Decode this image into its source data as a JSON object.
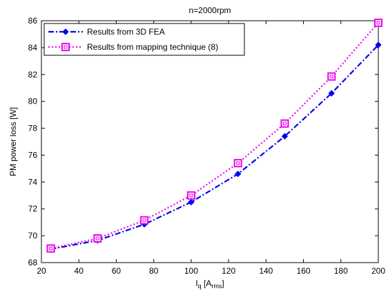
{
  "chart_data": {
    "type": "line",
    "title": "n=2000rpm",
    "xlabel": "I",
    "xlabel_sub": "q",
    "xlabel_unit_open": " [A",
    "xlabel_unit_sub": "rms",
    "xlabel_unit_close": "]",
    "ylabel": "PM power loss [W]",
    "xlim": [
      20,
      200
    ],
    "ylim": [
      68,
      86
    ],
    "xticks": [
      20,
      40,
      60,
      80,
      100,
      120,
      140,
      160,
      180,
      200
    ],
    "yticks": [
      68,
      70,
      72,
      74,
      76,
      78,
      80,
      82,
      84,
      86
    ],
    "grid": false,
    "legend_position": "top-left",
    "x": [
      25,
      50,
      75,
      100,
      125,
      150,
      175,
      200
    ],
    "series": [
      {
        "name": "Results from 3D FEA",
        "values": [
          69.0,
          69.65,
          70.85,
          72.5,
          74.6,
          77.4,
          80.6,
          84.2
        ],
        "color": "#0000ee",
        "line_style": "dash-dot",
        "marker": "diamond"
      },
      {
        "name": "Results from mapping technique (8)",
        "values": [
          69.05,
          69.8,
          71.15,
          73.0,
          75.4,
          78.35,
          81.85,
          85.85
        ],
        "color": "#ee00ee",
        "line_style": "dotted",
        "marker": "square"
      }
    ]
  }
}
